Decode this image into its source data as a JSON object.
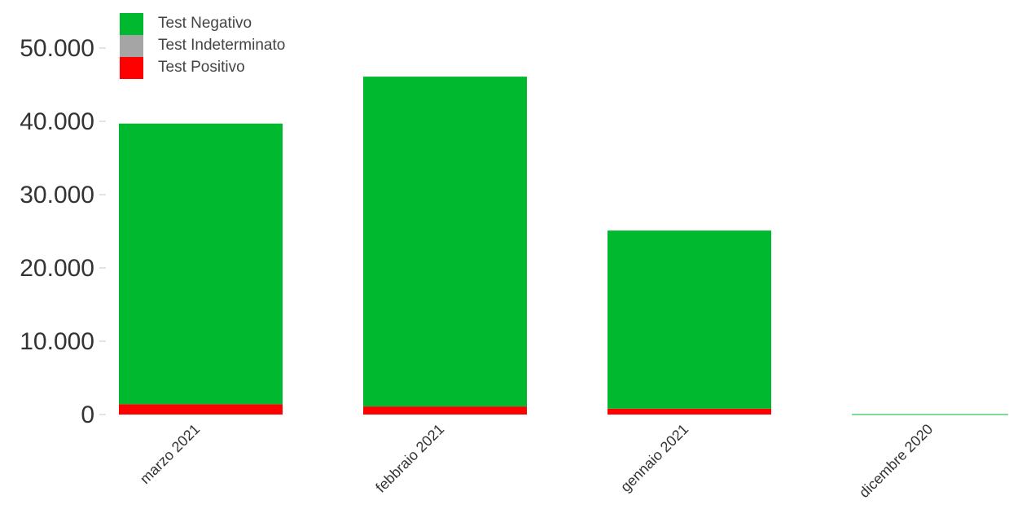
{
  "chart_data": {
    "type": "bar",
    "stacked": true,
    "categories": [
      "marzo 2021",
      "febbraio 2021",
      "gennaio 2021",
      "dicembre 2020"
    ],
    "series": [
      {
        "name": "Test Negativo",
        "color": "#00b92e",
        "values": [
          38300,
          45000,
          24300,
          60
        ]
      },
      {
        "name": "Test Indeterminato",
        "color": "#a5a5a5",
        "values": [
          0,
          0,
          0,
          0
        ]
      },
      {
        "name": "Test Positivo",
        "color": "#ff0000",
        "values": [
          1400,
          1100,
          800,
          0
        ]
      }
    ],
    "yticks": [
      0,
      10000,
      20000,
      30000,
      40000,
      50000
    ],
    "ytick_labels": [
      "0",
      "10.000",
      "20.000",
      "30.000",
      "40.000",
      "50.000"
    ],
    "ylim": [
      0,
      50000
    ],
    "grid": false,
    "legend_position": "top-left"
  }
}
